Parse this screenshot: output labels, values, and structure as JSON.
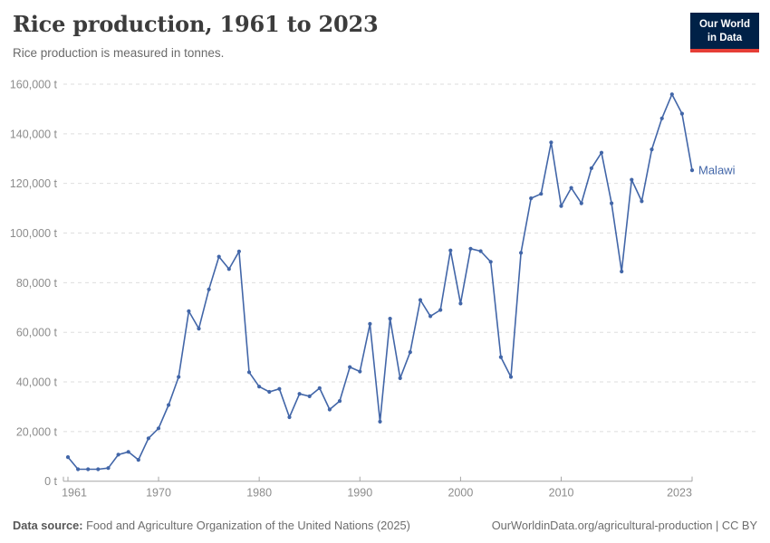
{
  "header": {
    "title": "Rice production, 1961 to 2023",
    "subtitle": "Rice production is measured in tonnes."
  },
  "logo": {
    "line1": "Our World",
    "line2": "in Data",
    "bg": "#002147",
    "accent": "#e63e36"
  },
  "chart_data": {
    "type": "line",
    "title": "Rice production, 1961 to 2023",
    "unit": "t",
    "ylabel": "",
    "xlabel": "",
    "ylim": [
      0,
      160000
    ],
    "ytick_step": 20000,
    "ytick_suffix": " t",
    "xticks": [
      1961,
      1970,
      1980,
      1990,
      2000,
      2010,
      2023
    ],
    "grid": true,
    "legend_position": "end-of-line-label",
    "x": [
      1961,
      1962,
      1963,
      1964,
      1965,
      1966,
      1967,
      1968,
      1969,
      1970,
      1971,
      1972,
      1973,
      1974,
      1975,
      1976,
      1977,
      1978,
      1979,
      1980,
      1981,
      1982,
      1983,
      1984,
      1985,
      1986,
      1987,
      1988,
      1989,
      1990,
      1991,
      1992,
      1993,
      1994,
      1995,
      1996,
      1997,
      1998,
      1999,
      2000,
      2001,
      2002,
      2003,
      2004,
      2005,
      2006,
      2007,
      2008,
      2009,
      2010,
      2011,
      2012,
      2013,
      2014,
      2015,
      2016,
      2017,
      2018,
      2019,
      2020,
      2021,
      2022,
      2023
    ],
    "series": [
      {
        "name": "Malawi",
        "color": "#4266a8",
        "values": [
          9700,
          4800,
          4800,
          4800,
          5300,
          10700,
          11800,
          8600,
          17300,
          21300,
          30700,
          42000,
          68500,
          61500,
          77300,
          90500,
          85500,
          92600,
          43900,
          38100,
          36000,
          37200,
          25800,
          35200,
          34200,
          37500,
          28900,
          32300,
          46000,
          44200,
          63400,
          24000,
          65500,
          41500,
          52000,
          73000,
          66500,
          69000,
          93000,
          71600,
          93700,
          92700,
          88400,
          50000,
          42000,
          92000,
          114000,
          115800,
          136500,
          110900,
          118200,
          112000,
          126100,
          132400,
          112000,
          84500,
          121500,
          112800,
          133700,
          146200,
          155900,
          148100,
          125300
        ]
      }
    ]
  },
  "footer": {
    "source_label": "Data source:",
    "source_text": "Food and Agriculture Organization of the United Nations (2025)",
    "link": "OurWorldinData.org/agricultural-production",
    "separator": " | ",
    "license": "CC BY"
  }
}
